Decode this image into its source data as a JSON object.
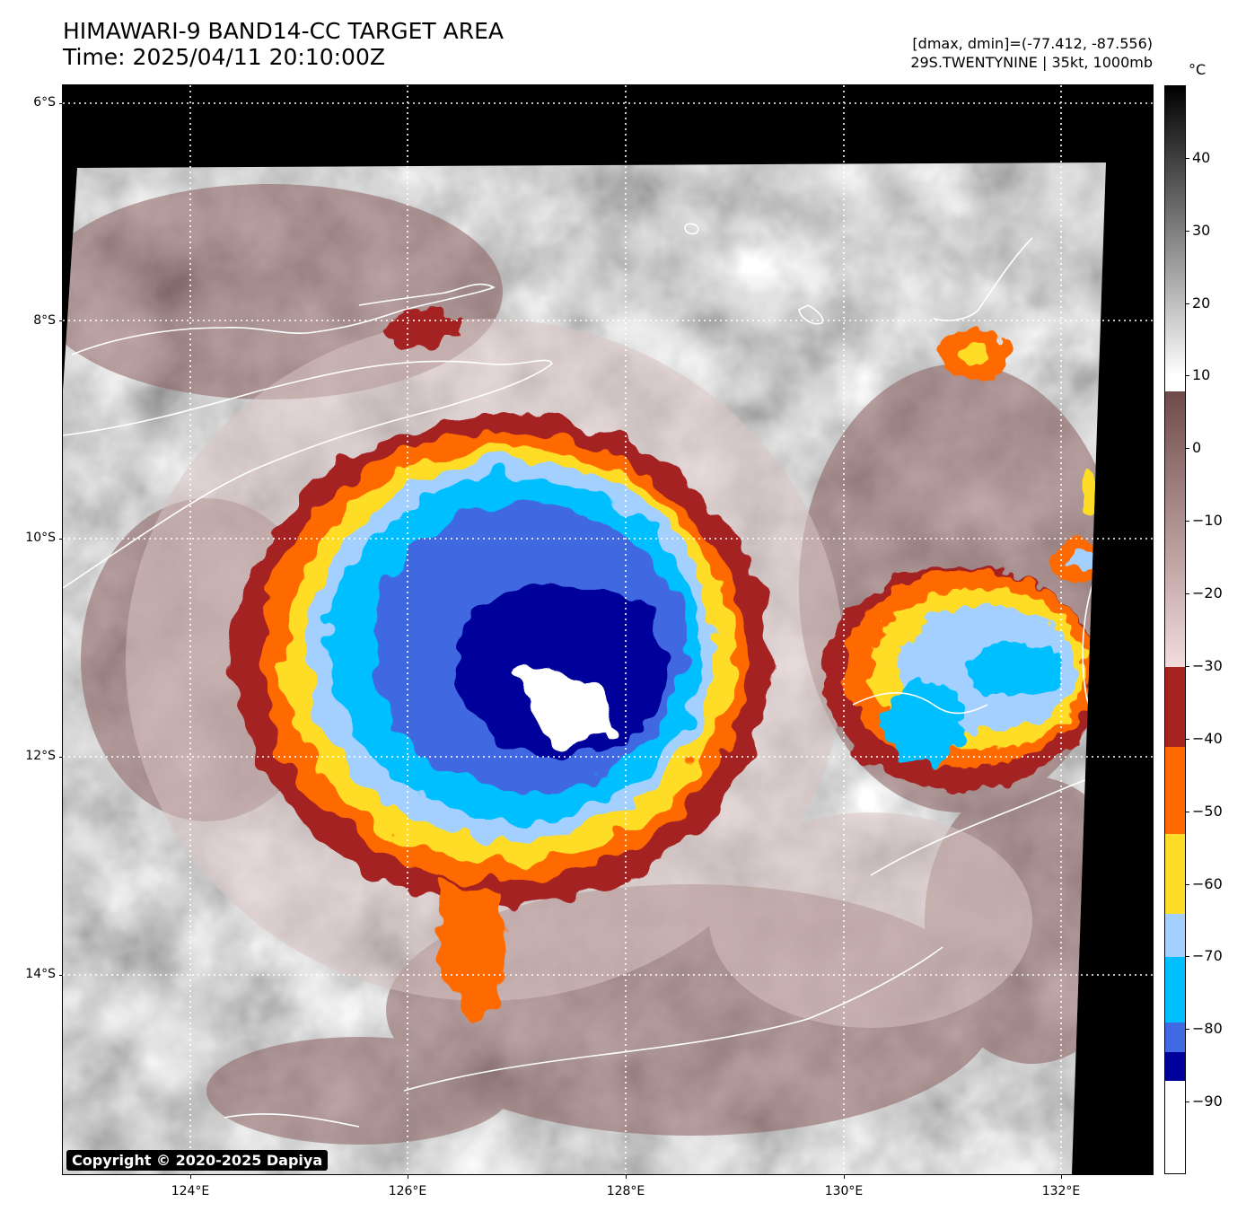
{
  "header": {
    "title_line1": "HIMAWARI-9 BAND14-CC TARGET AREA",
    "title_line2": "Time: 2025/04/11 20:10:00Z",
    "info_line1": "[dmax, dmin]=(-77.412, -87.556)",
    "info_line2": "29S.TWENTYNINE | 35kt, 1000mb"
  },
  "map": {
    "lat_labels": [
      "6°S",
      "8°S",
      "10°S",
      "12°S",
      "14°S"
    ],
    "lon_labels": [
      "124°E",
      "126°E",
      "128°E",
      "130°E",
      "132°E"
    ],
    "copyright": "Copyright © 2020-2025 Dapiya"
  },
  "colorbar": {
    "unit": "°C",
    "tick_labels": [
      "40",
      "30",
      "20",
      "10",
      "0",
      "−10",
      "−20",
      "−30",
      "−40",
      "−50",
      "−60",
      "−70",
      "−80",
      "−90"
    ],
    "range": [
      -100,
      50
    ],
    "bands": [
      {
        "from": 10,
        "to": 50,
        "colors": [
          "#ffffff",
          "#000000"
        ],
        "type": "gradient"
      },
      {
        "from": -30,
        "to": 8,
        "colors": [
          "#f3dcdc",
          "#6f4b4b"
        ],
        "type": "gradient"
      },
      {
        "from": -41,
        "to": -30,
        "color": "#a52422"
      },
      {
        "from": -53,
        "to": -41,
        "color": "#ff6a00"
      },
      {
        "from": -64,
        "to": -53,
        "color": "#ffdc28"
      },
      {
        "from": -70,
        "to": -64,
        "color": "#a3d0ff"
      },
      {
        "from": -79,
        "to": -70,
        "color": "#00bfff"
      },
      {
        "from": -83,
        "to": -79,
        "color": "#4169e1"
      },
      {
        "from": -87,
        "to": -83,
        "color": "#00009a"
      },
      {
        "from": -100,
        "to": -87,
        "color": "#ffffff"
      }
    ]
  }
}
